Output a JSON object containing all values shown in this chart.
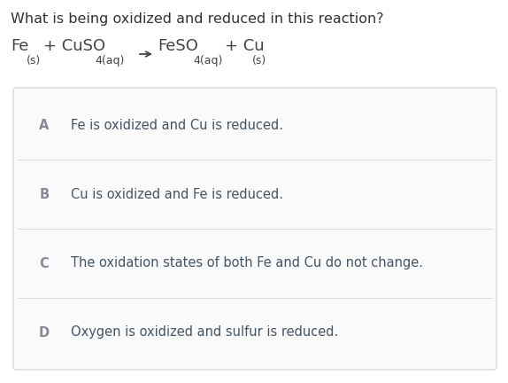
{
  "background_color": "#ffffff",
  "question": "What is being oxidized and reduced in this reaction?",
  "question_color": "#333333",
  "question_fontsize": 11.5,
  "equation_color": "#444444",
  "eq_fontsize": 13,
  "eq_sub_fontsize": 9,
  "options": [
    {
      "label": "A",
      "text": "Fe is oxidized and Cu is reduced."
    },
    {
      "label": "B",
      "text": "Cu is oxidized and Fe is reduced."
    },
    {
      "label": "C",
      "text": "The oxidation states of both Fe and Cu do not change."
    },
    {
      "label": "D",
      "text": "Oxygen is oxidized and sulfur is reduced."
    }
  ],
  "option_label_color": "#888899",
  "option_text_color": "#445566",
  "option_fontsize": 10.5,
  "label_fontsize": 10.5,
  "box_edge_color": "#d0d0d8",
  "box_bg_color": "#fafafa",
  "divider_color": "#d8d8e0",
  "fig_width": 5.74,
  "fig_height": 4.32,
  "dpi": 100
}
